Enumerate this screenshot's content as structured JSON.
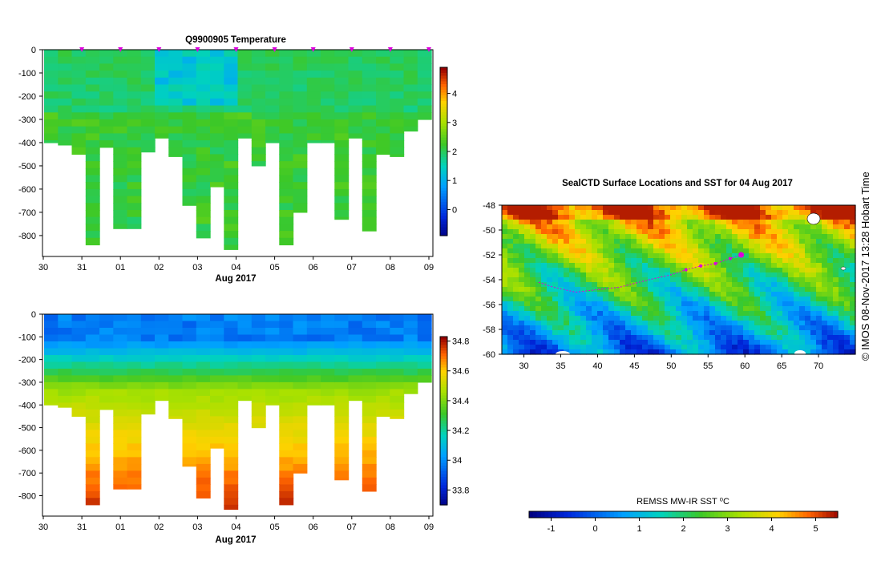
{
  "chart_data": [
    {
      "type": "heatmap",
      "title": "Q9900905  Temperature",
      "xlabel": "Aug 2017",
      "ylabel": "",
      "x_ticks": [
        "30",
        "31",
        "01",
        "02",
        "03",
        "04",
        "05",
        "06",
        "07",
        "08",
        "09"
      ],
      "y_ticks": [
        "0",
        "-100",
        "-200",
        "-300",
        "-400",
        "-500",
        "-600",
        "-700",
        "-800"
      ],
      "ylim": [
        -890,
        0
      ],
      "colorbar": {
        "ticks": [
          "4",
          "3",
          "2",
          "1",
          "0"
        ],
        "range": [
          -0.9,
          4.9
        ]
      },
      "profile_depths_m": [
        400,
        410,
        450,
        840,
        420,
        770,
        770,
        440,
        380,
        460,
        670,
        810,
        590,
        860,
        380,
        500,
        400,
        840,
        700,
        400,
        400,
        730,
        380,
        780,
        450,
        460,
        350,
        300
      ],
      "surface_markers_days": [
        1,
        2,
        3,
        4,
        5,
        6,
        7,
        8,
        9,
        10
      ]
    },
    {
      "type": "heatmap",
      "title": "",
      "xlabel": "Aug 2017",
      "ylabel": "",
      "x_ticks": [
        "30",
        "31",
        "01",
        "02",
        "03",
        "04",
        "05",
        "06",
        "07",
        "08",
        "09"
      ],
      "y_ticks": [
        "0",
        "-100",
        "-200",
        "-300",
        "-400",
        "-500",
        "-600",
        "-700",
        "-800"
      ],
      "ylim": [
        -890,
        0
      ],
      "colorbar": {
        "ticks": [
          "34.8",
          "34.6",
          "34.4",
          "34.2",
          "34",
          "33.8"
        ],
        "range": [
          33.7,
          34.83
        ]
      },
      "profile_depths_m": [
        400,
        410,
        450,
        840,
        420,
        770,
        770,
        440,
        380,
        460,
        670,
        810,
        590,
        860,
        380,
        500,
        400,
        840,
        700,
        400,
        400,
        730,
        380,
        780,
        450,
        460,
        350,
        300
      ]
    },
    {
      "type": "heatmap",
      "title": "SealCTD Surface Locations and SST for 04 Aug 2017",
      "xlabel": "",
      "ylabel": "",
      "x_ticks": [
        "30",
        "35",
        "40",
        "45",
        "50",
        "55",
        "60",
        "65",
        "70"
      ],
      "y_ticks": [
        "-48",
        "-50",
        "-52",
        "-54",
        "-56",
        "-58",
        "-60"
      ],
      "xlim": [
        27,
        75
      ],
      "ylim": [
        -60,
        -48
      ],
      "colorbar": {
        "label": "REMSS MW-IR SST ⁰C",
        "ticks": [
          "-1",
          "0",
          "1",
          "2",
          "3",
          "4",
          "5"
        ],
        "range": [
          -1.5,
          5.5
        ]
      },
      "track": {
        "lon": [
          32,
          34,
          37,
          40,
          43,
          45,
          47,
          50,
          52,
          54,
          56,
          58,
          59.5
        ],
        "lat": [
          -54.2,
          -54.6,
          -55.0,
          -54.8,
          -54.6,
          -54.3,
          -54.0,
          -53.6,
          -53.2,
          -52.9,
          -52.7,
          -52.3,
          -52.0
        ]
      }
    }
  ],
  "side_label": "© IMOS 08-Nov-2017 13:28 Hobart Time",
  "colors": {
    "track": "#dd00dd",
    "land": "#ffffff",
    "bg": "#ffffff"
  }
}
